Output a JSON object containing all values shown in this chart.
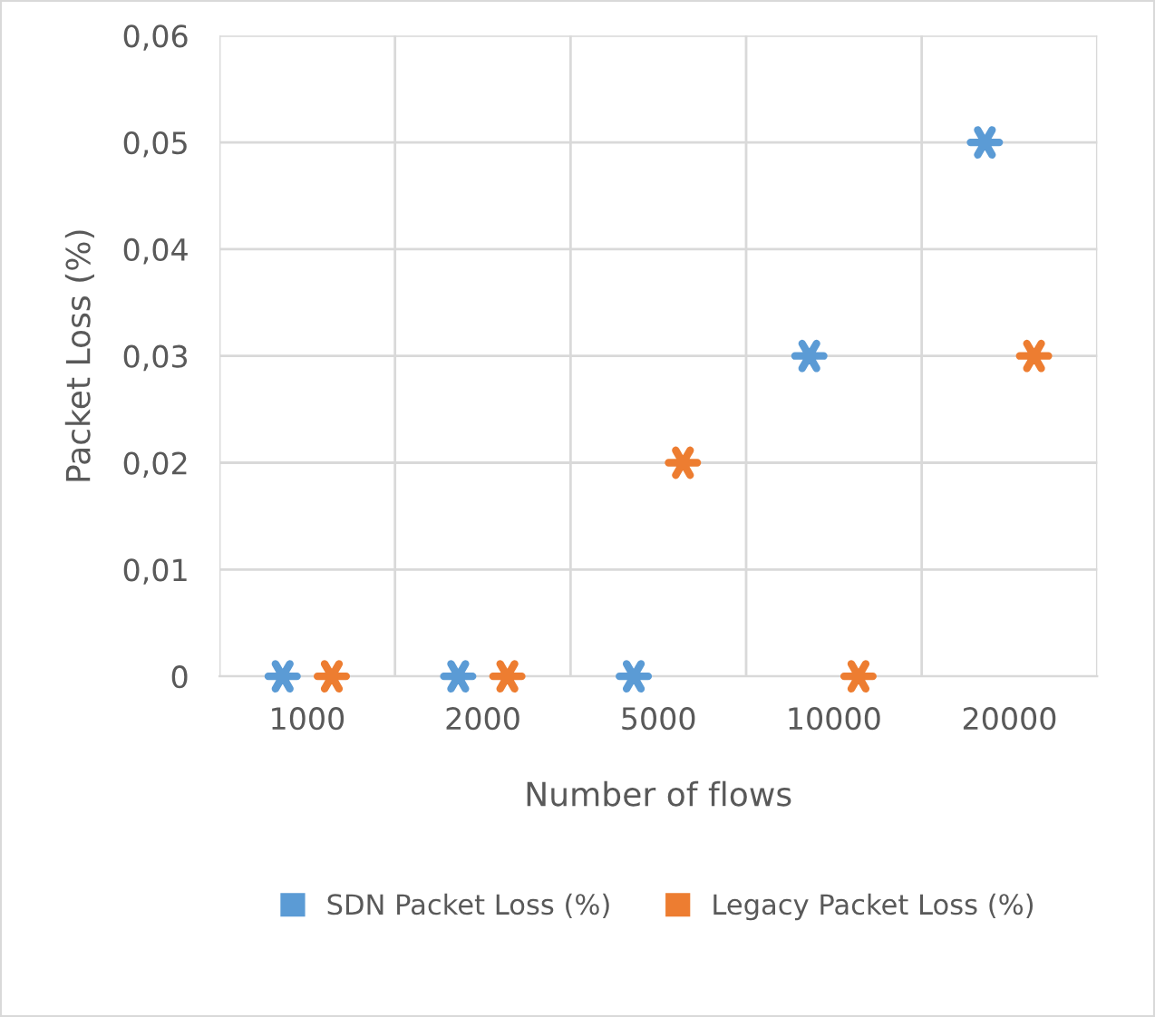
{
  "chart_data": {
    "type": "scatter",
    "xlabel": "Number of flows",
    "ylabel": "Packet Loss (%)",
    "categories": [
      "1000",
      "2000",
      "5000",
      "10000",
      "20000"
    ],
    "series": [
      {
        "name": "SDN Packet Loss (%)",
        "color": "#5b9bd5",
        "values": [
          0,
          0,
          0,
          0.03,
          0.05
        ]
      },
      {
        "name": "Legacy Packet Loss (%)",
        "color": "#ed7d31",
        "values": [
          0,
          0,
          0.02,
          0,
          0.03
        ]
      }
    ],
    "ylim": [
      0,
      0.06
    ],
    "yticks": [
      {
        "value": 0,
        "label": "0"
      },
      {
        "value": 0.01,
        "label": "0,01"
      },
      {
        "value": 0.02,
        "label": "0,02"
      },
      {
        "value": 0.03,
        "label": "0,03"
      },
      {
        "value": 0.04,
        "label": "0,04"
      },
      {
        "value": 0.05,
        "label": "0,05"
      },
      {
        "value": 0.06,
        "label": "0,06"
      }
    ],
    "grid": true,
    "legend": "bottom",
    "marker": "cross"
  }
}
